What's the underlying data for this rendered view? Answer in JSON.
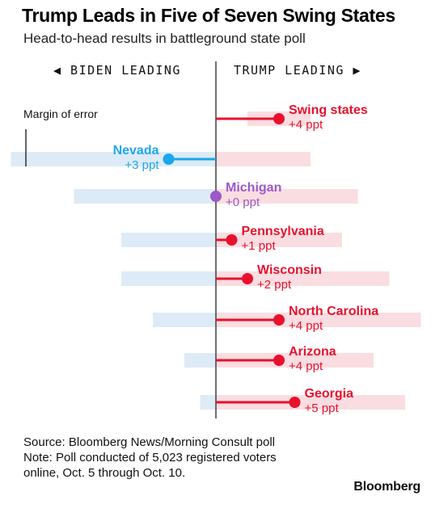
{
  "header": {
    "title": "Trump Leads in Five of Seven Swing States",
    "subtitle": "Head-to-head results in battleground state poll"
  },
  "direction_labels": {
    "left": "◀ BIDEN LEADING",
    "right": "TRUMP LEADING ▶"
  },
  "legend": {
    "margin_of_error_label": "Margin of error"
  },
  "colors": {
    "trump": "#e8112d",
    "biden": "#1ba7ec",
    "tie": "#9b59c9",
    "band_biden": "#ddebf6",
    "band_trump": "#fadde1",
    "axis": "#222222"
  },
  "chart_data": {
    "type": "dot",
    "title": "Trump Leads in Five of Seven Swing States",
    "subtitle": "Head-to-head results in battleground state poll",
    "xlabel": "",
    "ylabel": "",
    "unit": "ppt",
    "categories": [
      "Swing states",
      "Nevada",
      "Michigan",
      "Pennsylvania",
      "Wisconsin",
      "North Carolina",
      "Arizona",
      "Georgia"
    ],
    "values": [
      4,
      -3,
      0,
      1,
      2,
      4,
      4,
      5
    ],
    "value_labels": [
      "+4 ppt",
      "+3 ppt",
      "+0 ppt",
      "+1 ppt",
      "+2 ppt",
      "+4 ppt",
      "+4 ppt",
      "+5 ppt"
    ],
    "leader": [
      "trump",
      "biden",
      "tie",
      "trump",
      "trump",
      "trump",
      "trump",
      "trump"
    ],
    "margin_of_error_range": [
      [
        2,
        6
      ],
      [
        -13,
        6
      ],
      [
        -9,
        9
      ],
      [
        -6,
        8
      ],
      [
        -6,
        11
      ],
      [
        -4,
        13
      ],
      [
        -2,
        10
      ],
      [
        -1,
        12
      ]
    ],
    "xlim": [
      -13,
      13
    ],
    "grid": false,
    "legend": "top-left"
  },
  "footer": {
    "source": "Source: Bloomberg News/Morning Consult poll",
    "note": "Note: Poll conducted of 5,023 registered voters online, Oct. 5 through Oct. 10.",
    "brand": "Bloomberg"
  }
}
